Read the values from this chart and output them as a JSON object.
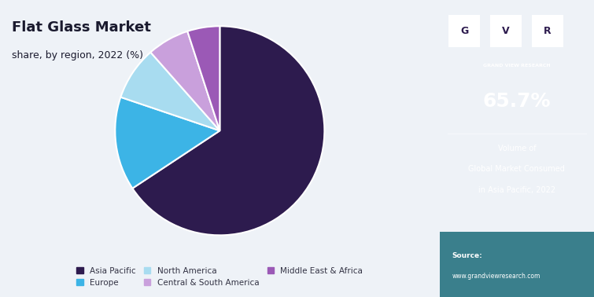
{
  "title": "Flat Glass Market",
  "subtitle": "share, by region, 2022 (%)",
  "slices": [
    65.7,
    14.5,
    8.3,
    6.5,
    5.0
  ],
  "labels": [
    "Asia Pacific",
    "Europe",
    "North America",
    "Central & South America",
    "Middle East & Africa"
  ],
  "colors": [
    "#2d1b4e",
    "#3cb4e6",
    "#a8dcf0",
    "#c9a0dc",
    "#9b59b6"
  ],
  "startangle": 90,
  "highlight_value": "65.7%",
  "highlight_label1": "Volume of",
  "highlight_label2": "Global Market Consumed",
  "highlight_label3": "in Asia Pacific, 2022",
  "right_panel_bg": "#2d1b4e",
  "source_bg": "#1a6b7a",
  "left_bg": "#eef2f7",
  "title_color": "#1a1a2e",
  "legend_text_color": "#333344"
}
